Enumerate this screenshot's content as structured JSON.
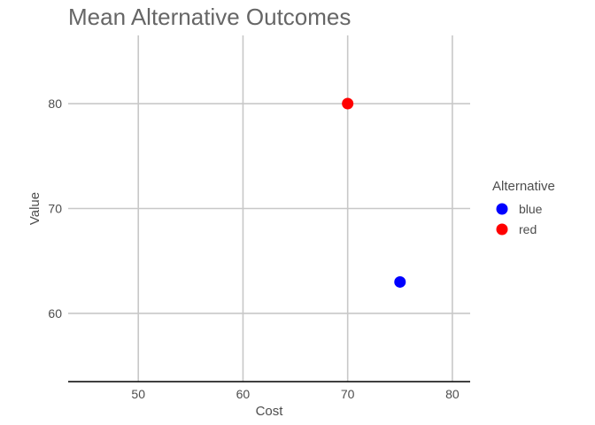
{
  "chart_data": {
    "type": "scatter",
    "title": "Mean Alternative Outcomes",
    "xlabel": "Cost",
    "ylabel": "Value",
    "xlim": [
      43.3,
      81.7
    ],
    "ylim": [
      53.5,
      86.5
    ],
    "x_ticks": [
      50,
      60,
      70,
      80
    ],
    "y_ticks": [
      60,
      70,
      80
    ],
    "grid": true,
    "legend": {
      "title": "Alternative",
      "placement": "right"
    },
    "series": [
      {
        "name": "blue",
        "color": "#0000ff",
        "points": [
          {
            "x": 75,
            "y": 63
          }
        ]
      },
      {
        "name": "red",
        "color": "#ff0000",
        "points": [
          {
            "x": 70,
            "y": 80
          }
        ]
      }
    ]
  }
}
